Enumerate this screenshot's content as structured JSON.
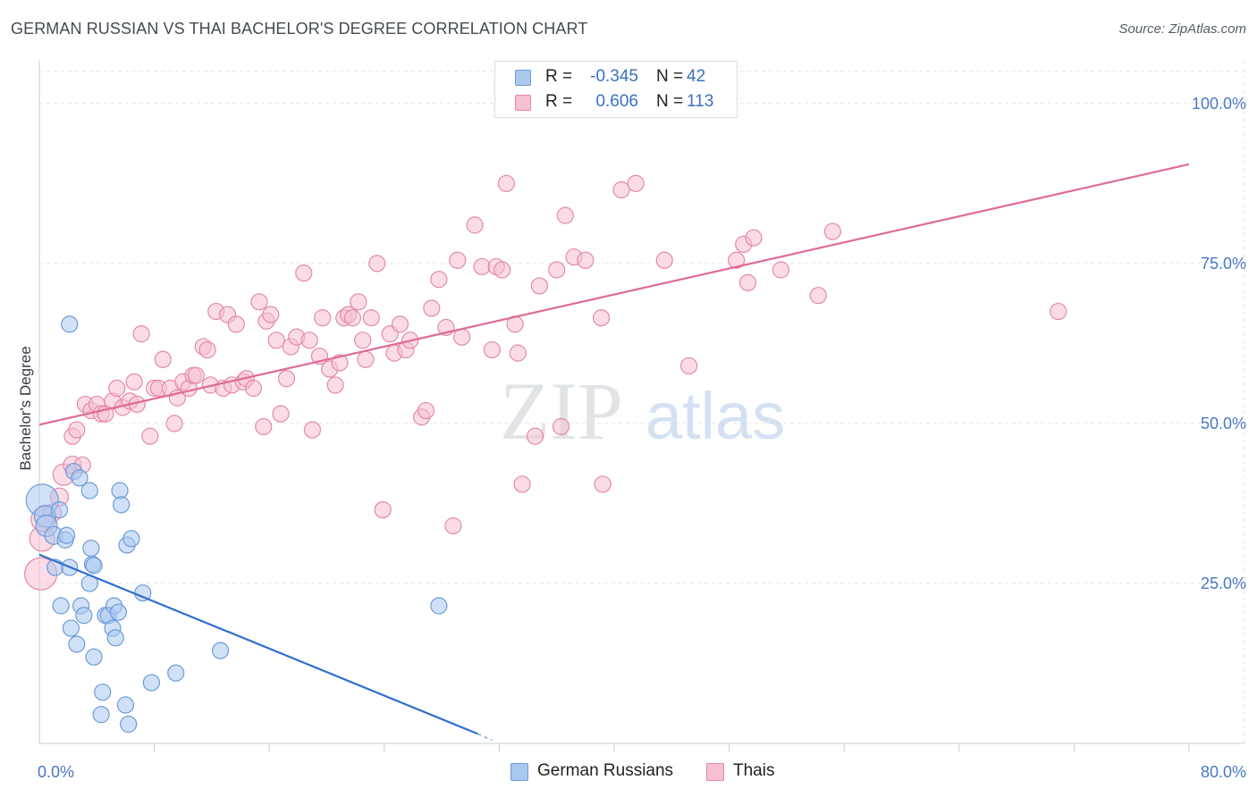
{
  "title": "GERMAN RUSSIAN VS THAI BACHELOR'S DEGREE CORRELATION CHART",
  "source": "Source: ZipAtlas.com",
  "watermark": {
    "zip": "ZIP",
    "atlas": "atlas"
  },
  "legend": {
    "rows": [
      {
        "r_label": "R =",
        "r_value": "-0.345",
        "n_label": "N =",
        "n_value": "42",
        "color": "#a9c8f0",
        "border": "#6f9ad6"
      },
      {
        "r_label": "R =",
        "r_value": "0.606",
        "n_label": "N =",
        "n_value": "113",
        "color": "#f7bfd2",
        "border": "#e28aa8"
      }
    ]
  },
  "bottom_legend": [
    {
      "label": "German Russians",
      "color": "#a9c8f0",
      "border": "#6f9ad6"
    },
    {
      "label": "Thais",
      "color": "#f7bfd2",
      "border": "#e28aa8"
    }
  ],
  "chart_data": {
    "type": "scatter",
    "title": "GERMAN RUSSIAN VS THAI BACHELOR'S DEGREE CORRELATION CHART",
    "xlabel": "",
    "ylabel": "Bachelor's Degree",
    "xlim": [
      0,
      80
    ],
    "ylim": [
      0,
      105
    ],
    "x_tick_labels": [
      "0.0%",
      "80.0%"
    ],
    "y_ticks": [
      25,
      50,
      75,
      100
    ],
    "y_tick_labels": [
      "25.0%",
      "50.0%",
      "75.0%",
      "100.0%"
    ],
    "grid": true,
    "series": [
      {
        "name": "German Russians",
        "color": "#a9c8f0",
        "border": "#6f9ad6",
        "line_color": "#2f6fcf",
        "trend": {
          "x": [
            0,
            30.5
          ],
          "y": [
            29.5,
            1.5
          ],
          "dash_to": [
            30.5,
            31.5
          ],
          "dash_y": [
            1.5,
            0.5
          ]
        },
        "points": [
          [
            0.2,
            38,
            18
          ],
          [
            0.4,
            35.5,
            12
          ],
          [
            0.5,
            34,
            12
          ],
          [
            1.0,
            32.5,
            10
          ],
          [
            1.1,
            27.5,
            9
          ],
          [
            1.4,
            36.5,
            9
          ],
          [
            1.5,
            21.5,
            9
          ],
          [
            1.8,
            31.8,
            9
          ],
          [
            1.9,
            32.5,
            9
          ],
          [
            2.1,
            27.5,
            9
          ],
          [
            2.2,
            18,
            9
          ],
          [
            2.4,
            42.5,
            9
          ],
          [
            2.1,
            65.5,
            9
          ],
          [
            2.6,
            15.5,
            9
          ],
          [
            2.8,
            41.5,
            9
          ],
          [
            2.9,
            21.5,
            9
          ],
          [
            3.1,
            20,
            9
          ],
          [
            3.5,
            25,
            9
          ],
          [
            3.7,
            28,
            9
          ],
          [
            3.8,
            27.8,
            9
          ],
          [
            3.5,
            39.5,
            9
          ],
          [
            3.6,
            30.5,
            9
          ],
          [
            3.8,
            13.5,
            9
          ],
          [
            4.4,
            8,
            9
          ],
          [
            4.6,
            20,
            9
          ],
          [
            4.8,
            20,
            9
          ],
          [
            4.3,
            4.5,
            9
          ],
          [
            5.1,
            18,
            9
          ],
          [
            5.3,
            16.5,
            9
          ],
          [
            5.2,
            21.5,
            9
          ],
          [
            5.5,
            20.5,
            9
          ],
          [
            5.6,
            39.5,
            9
          ],
          [
            5.7,
            37.3,
            9
          ],
          [
            6.0,
            6,
            9
          ],
          [
            6.2,
            3,
            9
          ],
          [
            6.1,
            31,
            9
          ],
          [
            6.4,
            32,
            9
          ],
          [
            7.2,
            23.5,
            9
          ],
          [
            7.8,
            9.5,
            9
          ],
          [
            9.5,
            11,
            9
          ],
          [
            12.6,
            14.5,
            9
          ],
          [
            27.8,
            21.5,
            9
          ]
        ]
      },
      {
        "name": "Thais",
        "color": "#f7bfd2",
        "border": "#e28aa8",
        "line_color": "#e0699a",
        "trend": {
          "x": [
            0,
            80
          ],
          "y": [
            49.8,
            90.5
          ]
        },
        "points": [
          [
            0.1,
            26.5,
            18
          ],
          [
            0.2,
            32,
            14
          ],
          [
            0.3,
            35,
            14
          ],
          [
            0.9,
            36,
            10
          ],
          [
            1.4,
            38.5,
            10
          ],
          [
            1.7,
            42,
            12
          ],
          [
            2.3,
            43.5,
            10
          ],
          [
            2.3,
            48,
            9
          ],
          [
            2.6,
            49,
            9
          ],
          [
            3.0,
            43.5,
            9
          ],
          [
            3.2,
            53,
            9
          ],
          [
            3.6,
            52,
            9
          ],
          [
            4.0,
            53,
            9
          ],
          [
            4.3,
            51.5,
            9
          ],
          [
            4.6,
            51.5,
            9
          ],
          [
            5.1,
            53.5,
            9
          ],
          [
            5.4,
            55.5,
            9
          ],
          [
            5.8,
            52.5,
            9
          ],
          [
            6.3,
            53.5,
            9
          ],
          [
            6.6,
            56.5,
            9
          ],
          [
            6.8,
            53,
            9
          ],
          [
            7.1,
            64,
            9
          ],
          [
            7.7,
            48,
            9
          ],
          [
            8.0,
            55.5,
            9
          ],
          [
            8.3,
            55.5,
            9
          ],
          [
            8.6,
            60,
            9
          ],
          [
            9.1,
            55.5,
            9
          ],
          [
            9.4,
            50,
            9
          ],
          [
            9.6,
            54,
            9
          ],
          [
            10.0,
            56.5,
            9
          ],
          [
            10.4,
            55.5,
            9
          ],
          [
            10.7,
            57.5,
            9
          ],
          [
            10.9,
            57.5,
            9
          ],
          [
            11.4,
            62,
            9
          ],
          [
            11.9,
            56,
            9
          ],
          [
            11.7,
            61.5,
            9
          ],
          [
            12.3,
            67.5,
            9
          ],
          [
            12.8,
            55.5,
            9
          ],
          [
            13.1,
            67,
            9
          ],
          [
            13.4,
            56,
            9
          ],
          [
            13.7,
            65.5,
            9
          ],
          [
            14.2,
            56.5,
            9
          ],
          [
            14.4,
            57,
            9
          ],
          [
            14.9,
            55.5,
            9
          ],
          [
            15.3,
            69,
            9
          ],
          [
            15.6,
            49.5,
            9
          ],
          [
            15.8,
            66,
            9
          ],
          [
            16.1,
            67,
            9
          ],
          [
            16.5,
            63,
            9
          ],
          [
            16.8,
            51.5,
            9
          ],
          [
            17.2,
            57,
            9
          ],
          [
            17.5,
            62,
            9
          ],
          [
            17.9,
            63.5,
            9
          ],
          [
            18.4,
            73.5,
            9
          ],
          [
            18.8,
            63,
            9
          ],
          [
            19.0,
            49,
            9
          ],
          [
            19.5,
            60.5,
            9
          ],
          [
            19.7,
            66.5,
            9
          ],
          [
            20.2,
            58.5,
            9
          ],
          [
            20.6,
            56,
            9
          ],
          [
            20.9,
            59.5,
            9
          ],
          [
            21.2,
            66.5,
            9
          ],
          [
            21.5,
            67,
            9
          ],
          [
            21.8,
            66.5,
            9
          ],
          [
            22.2,
            69,
            9
          ],
          [
            22.5,
            63,
            9
          ],
          [
            22.7,
            60,
            9
          ],
          [
            23.1,
            66.5,
            9
          ],
          [
            23.5,
            75,
            9
          ],
          [
            23.9,
            36.5,
            9
          ],
          [
            24.4,
            64,
            9
          ],
          [
            24.7,
            61,
            9
          ],
          [
            25.1,
            65.5,
            9
          ],
          [
            25.5,
            61.5,
            9
          ],
          [
            25.8,
            63,
            9
          ],
          [
            26.6,
            51,
            9
          ],
          [
            26.9,
            52,
            9
          ],
          [
            27.3,
            68,
            9
          ],
          [
            27.8,
            72.5,
            9
          ],
          [
            28.3,
            65,
            9
          ],
          [
            28.8,
            34,
            9
          ],
          [
            29.1,
            75.5,
            9
          ],
          [
            29.4,
            63.5,
            9
          ],
          [
            30.3,
            81,
            9
          ],
          [
            30.8,
            74.5,
            9
          ],
          [
            31.5,
            61.5,
            9
          ],
          [
            31.8,
            74.5,
            9
          ],
          [
            32.2,
            74,
            9
          ],
          [
            32.5,
            87.5,
            9
          ],
          [
            33.1,
            65.5,
            9
          ],
          [
            33.3,
            61,
            9
          ],
          [
            33.6,
            40.5,
            9
          ],
          [
            34.5,
            48,
            9
          ],
          [
            34.8,
            71.5,
            9
          ],
          [
            36.0,
            74,
            9
          ],
          [
            36.3,
            49.5,
            9
          ],
          [
            36.6,
            82.5,
            9
          ],
          [
            37.2,
            76,
            9
          ],
          [
            38.0,
            75.5,
            9
          ],
          [
            39.1,
            66.5,
            9
          ],
          [
            39.2,
            40.5,
            9
          ],
          [
            40.5,
            86.5,
            9
          ],
          [
            41.5,
            87.5,
            9
          ],
          [
            43.5,
            75.5,
            9
          ],
          [
            45.2,
            59,
            9
          ],
          [
            48.5,
            75.5,
            9
          ],
          [
            49.0,
            78,
            9
          ],
          [
            49.3,
            72,
            9
          ],
          [
            49.7,
            79,
            9
          ],
          [
            51.6,
            74,
            9
          ],
          [
            54.2,
            70,
            9
          ],
          [
            55.2,
            80,
            9
          ],
          [
            70.9,
            67.5,
            9
          ]
        ]
      }
    ]
  }
}
